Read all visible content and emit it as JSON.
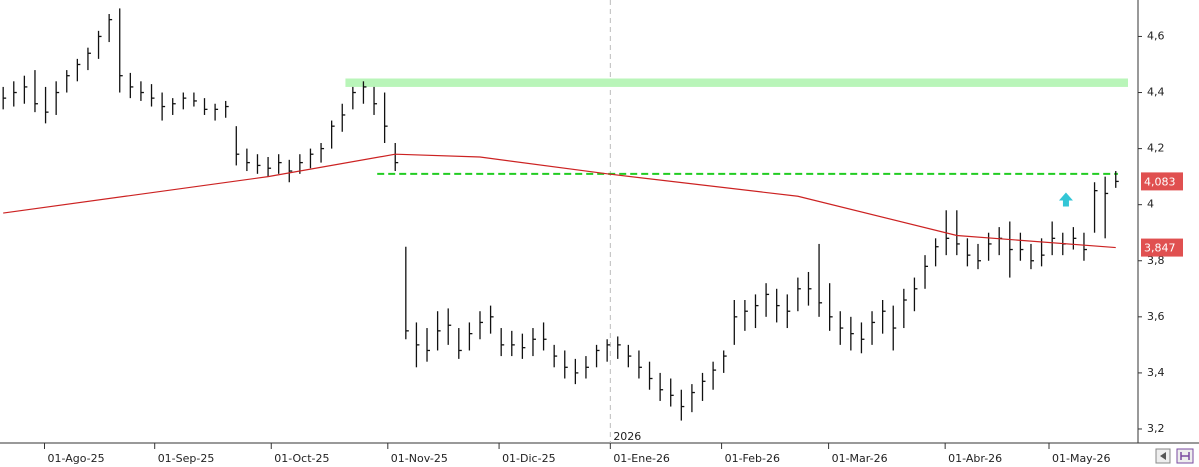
{
  "chart_data": {
    "type": "ohlc",
    "xlim": [
      -0.3,
      107.1
    ],
    "ylim": [
      3.15,
      4.73
    ],
    "xticks": [
      {
        "value": 3.9,
        "label": "01-Ago-25"
      },
      {
        "value": 14.3,
        "label": "01-Sep-25"
      },
      {
        "value": 25.3,
        "label": "01-Oct-25"
      },
      {
        "value": 36.3,
        "label": "01-Nov-25"
      },
      {
        "value": 46.8,
        "label": "01-Dic-25"
      },
      {
        "value": 57.3,
        "label": "01-Ene-26"
      },
      {
        "value": 67.8,
        "label": "01-Feb-26"
      },
      {
        "value": 77.9,
        "label": "01-Mar-26"
      },
      {
        "value": 88.9,
        "label": "01-Abr-26"
      },
      {
        "value": 98.7,
        "label": "01-May-26"
      }
    ],
    "year_marker": {
      "value": 57.3,
      "label": "2026"
    },
    "yticks": [
      {
        "value": 3.2,
        "label": "3,2"
      },
      {
        "value": 3.4,
        "label": "3,4"
      },
      {
        "value": 3.6,
        "label": "3,6"
      },
      {
        "value": 3.8,
        "label": "3,8"
      },
      4,
      {
        "value": 4.2,
        "label": "4,2"
      },
      {
        "value": 4.4,
        "label": "4,4"
      },
      {
        "value": 4.6,
        "label": "4,6"
      }
    ],
    "color": "#111111",
    "high": [
      4.42,
      4.44,
      4.46,
      4.48,
      4.42,
      4.44,
      4.48,
      4.52,
      4.56,
      4.62,
      4.68,
      4.7,
      4.47,
      4.44,
      4.43,
      4.4,
      4.38,
      4.4,
      4.4,
      4.38,
      4.36,
      4.37,
      4.28,
      4.2,
      4.18,
      4.17,
      4.18,
      4.16,
      4.18,
      4.2,
      4.22,
      4.3,
      4.36,
      4.42,
      4.44,
      4.42,
      4.4,
      4.22,
      3.85,
      3.58,
      3.56,
      3.62,
      3.63,
      3.56,
      3.58,
      3.62,
      3.64,
      3.56,
      3.55,
      3.54,
      3.56,
      3.58,
      3.5,
      3.48,
      3.45,
      3.46,
      3.5,
      3.52,
      3.53,
      3.5,
      3.48,
      3.44,
      3.4,
      3.38,
      3.34,
      3.36,
      3.4,
      3.44,
      3.48,
      3.66,
      3.66,
      3.68,
      3.72,
      3.7,
      3.68,
      3.74,
      3.76,
      3.86,
      3.72,
      3.62,
      3.6,
      3.58,
      3.62,
      3.66,
      3.64,
      3.7,
      3.74,
      3.82,
      3.88,
      3.98,
      3.98,
      3.88,
      3.86,
      3.9,
      3.92,
      3.94,
      3.9,
      3.86,
      3.88,
      3.94,
      3.9,
      3.92,
      3.9,
      4.08,
      4.1,
      4.12
    ],
    "low": [
      4.34,
      4.35,
      4.36,
      4.33,
      4.29,
      4.32,
      4.4,
      4.44,
      4.48,
      4.52,
      4.58,
      4.4,
      4.38,
      4.37,
      4.35,
      4.3,
      4.32,
      4.34,
      4.35,
      4.32,
      4.3,
      4.31,
      4.14,
      4.12,
      4.11,
      4.1,
      4.11,
      4.08,
      4.11,
      4.13,
      4.15,
      4.2,
      4.26,
      4.34,
      4.36,
      4.32,
      4.22,
      4.12,
      3.52,
      3.42,
      3.44,
      3.48,
      3.5,
      3.45,
      3.48,
      3.52,
      3.54,
      3.46,
      3.46,
      3.45,
      3.46,
      3.48,
      3.42,
      3.38,
      3.36,
      3.38,
      3.42,
      3.44,
      3.45,
      3.42,
      3.38,
      3.34,
      3.3,
      3.28,
      3.23,
      3.26,
      3.3,
      3.34,
      3.4,
      3.5,
      3.55,
      3.56,
      3.6,
      3.58,
      3.56,
      3.62,
      3.64,
      3.6,
      3.55,
      3.5,
      3.48,
      3.47,
      3.5,
      3.54,
      3.48,
      3.56,
      3.62,
      3.7,
      3.78,
      3.82,
      3.82,
      3.78,
      3.77,
      3.8,
      3.82,
      3.74,
      3.8,
      3.77,
      3.78,
      3.82,
      3.82,
      3.84,
      3.8,
      3.9,
      3.88,
      4.06
    ],
    "close": [
      4.38,
      4.4,
      4.42,
      4.36,
      4.33,
      4.4,
      4.46,
      4.5,
      4.54,
      4.6,
      4.66,
      4.46,
      4.42,
      4.4,
      4.38,
      4.35,
      4.36,
      4.38,
      4.37,
      4.34,
      4.34,
      4.35,
      4.18,
      4.15,
      4.14,
      4.13,
      4.15,
      4.12,
      4.15,
      4.18,
      4.2,
      4.28,
      4.32,
      4.4,
      4.42,
      4.36,
      4.28,
      4.15,
      3.55,
      3.5,
      3.48,
      3.55,
      3.57,
      3.48,
      3.54,
      3.58,
      3.6,
      3.5,
      3.5,
      3.49,
      3.52,
      3.52,
      3.46,
      3.42,
      3.4,
      3.42,
      3.48,
      3.5,
      3.5,
      3.46,
      3.42,
      3.38,
      3.34,
      3.32,
      3.28,
      3.33,
      3.37,
      3.41,
      3.46,
      3.6,
      3.62,
      3.64,
      3.68,
      3.64,
      3.62,
      3.7,
      3.7,
      3.65,
      3.6,
      3.56,
      3.54,
      3.52,
      3.58,
      3.62,
      3.56,
      3.66,
      3.7,
      3.78,
      3.85,
      3.88,
      3.86,
      3.82,
      3.8,
      3.86,
      3.88,
      3.84,
      3.84,
      3.8,
      3.82,
      3.88,
      3.86,
      3.88,
      3.84,
      4.05,
      4.04,
      4.083
    ],
    "moving_average": {
      "color": "#cc2222",
      "x": [
        0,
        25,
        37,
        45,
        57,
        75,
        90,
        105
      ],
      "values": [
        3.97,
        4.1,
        4.18,
        4.17,
        4.11,
        4.03,
        3.89,
        3.847
      ]
    },
    "last_price": {
      "value": 4.083,
      "label": "4,083",
      "color": "#e05050"
    },
    "ma_last": {
      "value": 3.847,
      "label": "3,847",
      "color": "#e05050"
    },
    "resistance_zone": {
      "low": 4.42,
      "high": 4.45,
      "x_start": 32.3,
      "color": "#b9f5b9"
    },
    "support_line": {
      "value": 4.11,
      "x_start": 35.3,
      "x_end": 105.2,
      "color": "#22cc22"
    },
    "signal": {
      "x": 100.3,
      "value": 4.015,
      "color": "#33c6d6"
    }
  }
}
